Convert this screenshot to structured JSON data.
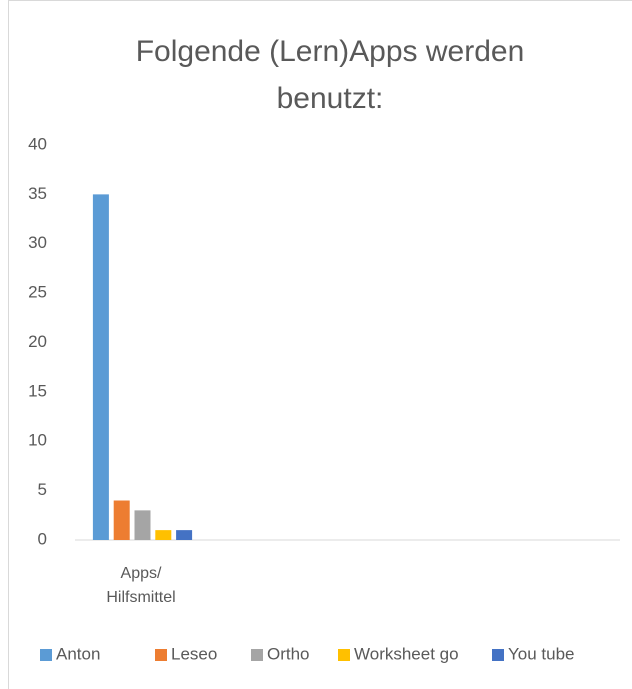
{
  "chart_data": {
    "type": "bar",
    "title": "Folgende (Lern)Apps werden benutzt:",
    "categories": [
      "Apps/ Hilfsmittel"
    ],
    "series": [
      {
        "name": "Anton",
        "color": "#5b9bd5",
        "values": [
          35
        ]
      },
      {
        "name": "Leseo",
        "color": "#ed7d31",
        "values": [
          4
        ]
      },
      {
        "name": "Ortho",
        "color": "#a5a5a5",
        "values": [
          3
        ]
      },
      {
        "name": "Worksheet go",
        "color": "#ffc000",
        "values": [
          1
        ]
      },
      {
        "name": "You tube",
        "color": "#4472c4",
        "values": [
          1
        ]
      }
    ],
    "ylim": [
      0,
      40
    ],
    "yticks": [
      0,
      5,
      10,
      15,
      20,
      25,
      30,
      35,
      40
    ],
    "grid": false,
    "legend": "bottom"
  }
}
